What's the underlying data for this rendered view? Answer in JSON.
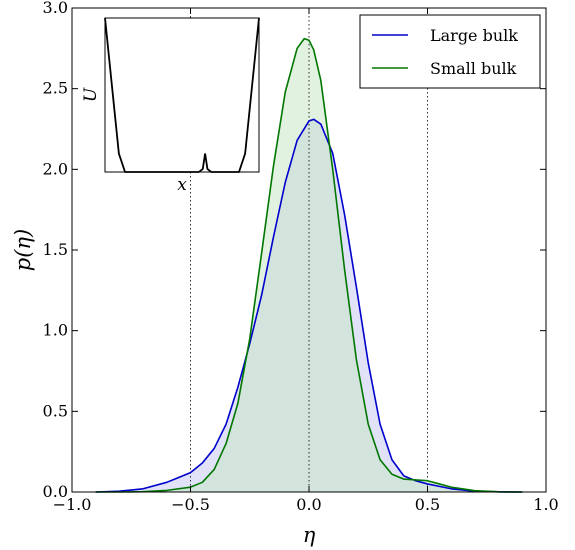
{
  "chart_data": {
    "type": "area",
    "xlabel": "η",
    "ylabel": "p(η)",
    "xlim": [
      -1.0,
      1.0
    ],
    "ylim": [
      0.0,
      3.0
    ],
    "xticks": [
      "−1.0",
      "−0.5",
      "0.0",
      "0.5",
      "1.0"
    ],
    "yticks": [
      "0.0",
      "0.5",
      "1.0",
      "1.5",
      "2.0",
      "2.5",
      "3.0"
    ],
    "reference_lines_x": [
      -0.5,
      0.0,
      0.5
    ],
    "legend_position": "top-right",
    "series": [
      {
        "name": "Large bulk",
        "color": "#0000cc",
        "fill": "#c8c8f0",
        "x": [
          -0.9,
          -0.8,
          -0.7,
          -0.6,
          -0.55,
          -0.5,
          -0.45,
          -0.4,
          -0.35,
          -0.3,
          -0.25,
          -0.2,
          -0.15,
          -0.1,
          -0.05,
          0.0,
          0.02,
          0.05,
          0.1,
          0.15,
          0.2,
          0.25,
          0.3,
          0.35,
          0.4,
          0.45,
          0.5,
          0.55,
          0.6,
          0.7,
          0.8,
          0.9
        ],
        "values": [
          0.0,
          0.005,
          0.02,
          0.06,
          0.09,
          0.12,
          0.18,
          0.27,
          0.42,
          0.65,
          0.92,
          1.22,
          1.58,
          1.92,
          2.18,
          2.3,
          2.31,
          2.28,
          2.1,
          1.72,
          1.27,
          0.8,
          0.42,
          0.2,
          0.1,
          0.07,
          0.05,
          0.035,
          0.02,
          0.005,
          0.001,
          0.0
        ]
      },
      {
        "name": "Small bulk",
        "color": "#007700",
        "fill": "#c8e8c8",
        "x": [
          -0.9,
          -0.8,
          -0.7,
          -0.6,
          -0.5,
          -0.45,
          -0.4,
          -0.35,
          -0.3,
          -0.25,
          -0.2,
          -0.15,
          -0.1,
          -0.05,
          -0.02,
          0.0,
          0.02,
          0.05,
          0.1,
          0.15,
          0.2,
          0.25,
          0.3,
          0.35,
          0.4,
          0.45,
          0.5,
          0.55,
          0.6,
          0.7,
          0.8,
          0.9
        ],
        "values": [
          0.0,
          0.0,
          0.002,
          0.01,
          0.03,
          0.06,
          0.14,
          0.3,
          0.55,
          0.95,
          1.48,
          2.02,
          2.48,
          2.75,
          2.81,
          2.8,
          2.74,
          2.55,
          2.0,
          1.38,
          0.82,
          0.42,
          0.2,
          0.11,
          0.08,
          0.075,
          0.07,
          0.05,
          0.03,
          0.008,
          0.001,
          0.0
        ]
      }
    ]
  },
  "inset": {
    "xlabel": "x",
    "ylabel": "U",
    "curve": [
      [
        0.0,
        1.0
      ],
      [
        0.09,
        0.12
      ],
      [
        0.13,
        0.0
      ],
      [
        0.61,
        0.0
      ],
      [
        0.635,
        0.02
      ],
      [
        0.65,
        0.12
      ],
      [
        0.665,
        0.02
      ],
      [
        0.69,
        0.0
      ],
      [
        0.87,
        0.0
      ],
      [
        0.91,
        0.12
      ],
      [
        1.0,
        1.0
      ]
    ]
  }
}
